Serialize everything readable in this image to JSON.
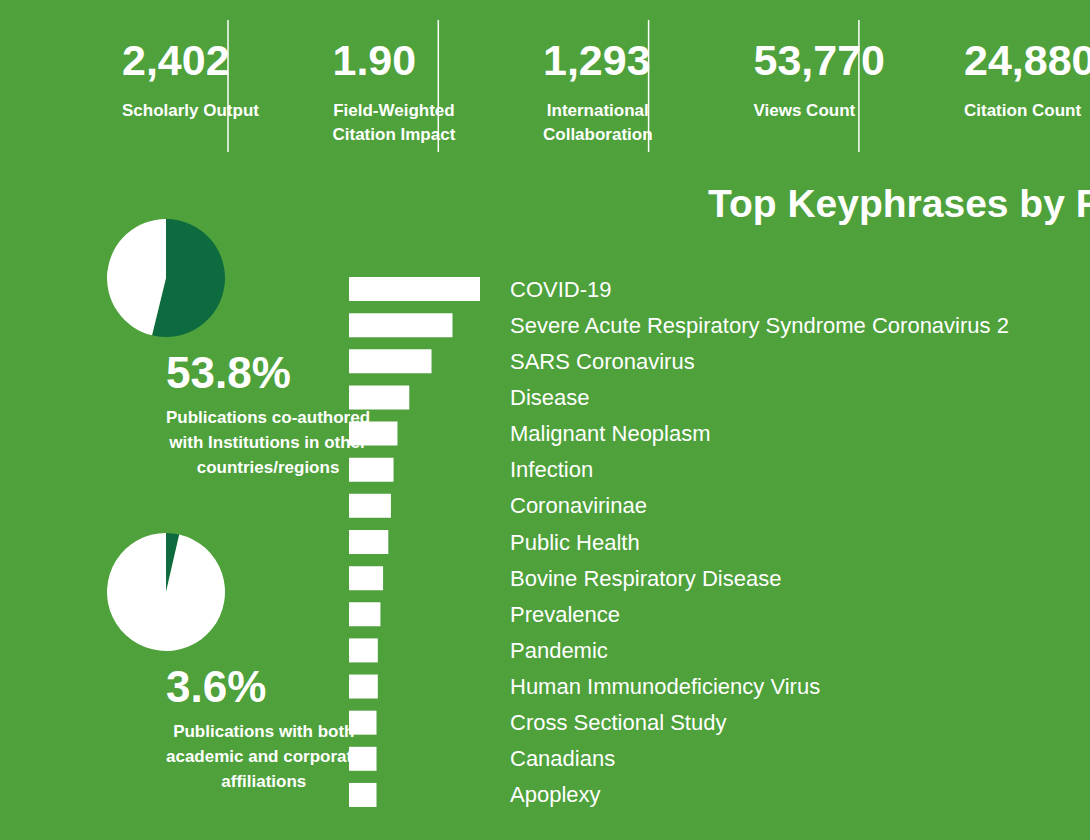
{
  "stats": [
    {
      "value": "2,402",
      "label": "Scholarly Output"
    },
    {
      "value": "1.90",
      "label": "Field-Weighted\nCitation Impact"
    },
    {
      "value": "1,293",
      "label": "International\nCollaboration"
    },
    {
      "value": "53,770",
      "label": "Views Count"
    },
    {
      "value": "24,880",
      "label": "Citation Count"
    }
  ],
  "chart_data": [
    {
      "type": "pie",
      "title": "Publications co-authored\nwith Institutions in other\ncountries/regions",
      "values": [
        53.8,
        46.2
      ],
      "value_labels": [
        "53.8%",
        null
      ],
      "colors": [
        "#0e6b3f",
        "#ffffff"
      ]
    },
    {
      "type": "pie",
      "title": "Publications with both\nacademic and corporate\naffiliations",
      "values": [
        3.6,
        96.4
      ],
      "value_labels": [
        "3.6%",
        null
      ],
      "colors": [
        "#0e6b3f",
        "#ffffff"
      ]
    },
    {
      "type": "bar",
      "title": "Top Keyphrases by Relevance",
      "orientation": "horizontal",
      "categories": [
        "COVID-19",
        "Severe Acute Respiratory Syndrome Coronavirus 2",
        "SARS Coronavirus",
        "Disease",
        "Malignant Neoplasm",
        "Infection",
        "Coronavirinae",
        "Public Health",
        "Bovine Respiratory Disease",
        "Prevalence",
        "Pandemic",
        "Human Immunodeficiency Virus",
        "Cross Sectional Study",
        "Canadians",
        "Apoplexy"
      ],
      "values": [
        100,
        79,
        63,
        46,
        37,
        34,
        32,
        30,
        26,
        24,
        22,
        22,
        21,
        21,
        21
      ],
      "xlim": [
        0,
        100
      ],
      "color": "#ffffff",
      "grid": false,
      "tick_labels": "y"
    }
  ]
}
